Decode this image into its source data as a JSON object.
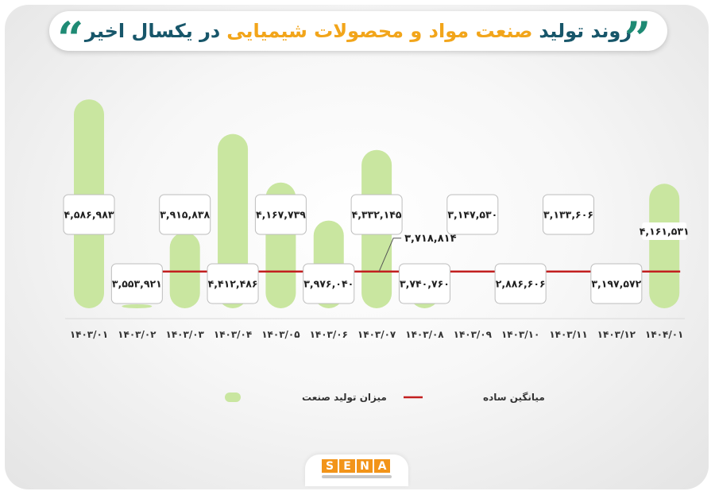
{
  "title": {
    "part1": "روند تولید",
    "part2": "صنعت مواد و محصولات شیمیایی",
    "part3": "در یکسال اخیر"
  },
  "chart_data": {
    "type": "bar",
    "categories": [
      "۱۴۰۳/۰۱",
      "۱۴۰۳/۰۲",
      "۱۴۰۳/۰۳",
      "۱۴۰۳/۰۴",
      "۱۴۰۳/۰۵",
      "۱۴۰۳/۰۶",
      "۱۴۰۳/۰۷",
      "۱۴۰۳/۰۸",
      "۱۴۰۳/۰۹",
      "۱۴۰۳/۱۰",
      "۱۴۰۳/۱۱",
      "۱۴۰۳/۱۲",
      "۱۴۰۴/۰۱"
    ],
    "values": [
      4586983,
      3553921,
      3915838,
      4412486,
      4167739,
      3976040,
      4332145,
      3740760,
      3147530,
      2886606,
      3133606,
      3197572,
      4161531
    ],
    "value_labels": [
      "۴,۵۸۶,۹۸۳",
      "۳,۵۵۳,۹۲۱",
      "۳,۹۱۵,۸۳۸",
      "۴,۴۱۲,۴۸۶",
      "۴,۱۶۷,۷۳۹",
      "۳,۹۷۶,۰۴۰",
      "۴,۳۳۲,۱۴۵",
      "۳,۷۴۰,۷۶۰",
      "۳,۱۴۷,۵۳۰",
      "۲,۸۸۶,۶۰۶",
      "۳,۱۳۳,۶۰۶",
      "۳,۱۹۷,۵۷۲",
      "۴,۱۶۱,۵۳۱"
    ],
    "average": 3718814,
    "average_label": "۳,۷۱۸,۸۱۴",
    "series": [
      {
        "name": "میزان تولید صنعت",
        "values": [
          4586983,
          3553921,
          3915838,
          4412486,
          4167739,
          3976040,
          4332145,
          3740760,
          3147530,
          2886606,
          3133606,
          3197572,
          4161531
        ]
      },
      {
        "name": "میانگین ساده",
        "values": [
          3718814,
          3718814,
          3718814,
          3718814,
          3718814,
          3718814,
          3718814,
          3718814,
          3718814,
          3718814,
          3718814,
          3718814,
          3718814
        ]
      }
    ],
    "xlabel": "",
    "ylabel": "",
    "grid": false,
    "legend_position": "bottom",
    "colors": {
      "bar": "#c9e6a0",
      "average_line": "#c21f1f",
      "label_text": "#1f1f1f",
      "axis_line": "#d9d9d9"
    }
  },
  "logo": {
    "letters": [
      "S",
      "E",
      "N",
      "A"
    ],
    "color": "#f29419"
  }
}
